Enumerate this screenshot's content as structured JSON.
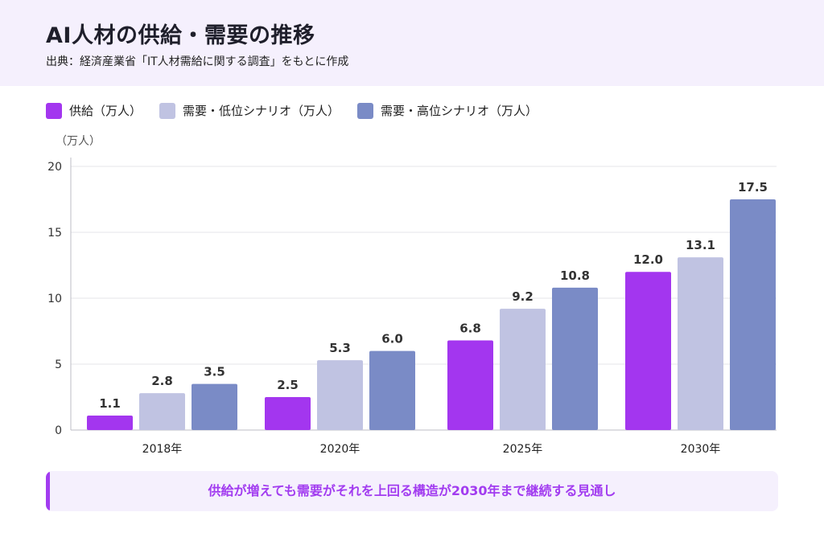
{
  "header": {
    "title": "AI人材の供給・需要の推移",
    "subtitle": "出典：経済産業省「IT人材需給に関する調査」をもとに作成"
  },
  "legend": [
    {
      "label": "供給（万人）",
      "color": "#a336ef"
    },
    {
      "label": "需要・低位シナリオ（万人）",
      "color": "#c0c3e2"
    },
    {
      "label": "需要・高位シナリオ（万人）",
      "color": "#7a8bc6"
    }
  ],
  "chart_data": {
    "type": "bar",
    "unit_label": "（万人）",
    "categories": [
      "2018年",
      "2020年",
      "2025年",
      "2030年"
    ],
    "series": [
      {
        "name": "供給（万人）",
        "color": "#a336ef",
        "values": [
          1.1,
          2.5,
          6.8,
          12.0
        ],
        "labels": [
          "1.1",
          "2.5",
          "6.8",
          "12.0"
        ]
      },
      {
        "name": "需要・低位シナリオ（万人）",
        "color": "#c0c3e2",
        "values": [
          2.8,
          5.3,
          9.2,
          13.1
        ],
        "labels": [
          "2.8",
          "5.3",
          "9.2",
          "13.1"
        ]
      },
      {
        "name": "需要・高位シナリオ（万人）",
        "color": "#7a8bc6",
        "values": [
          3.5,
          6.0,
          10.8,
          17.5
        ],
        "labels": [
          "3.5",
          "6.0",
          "10.8",
          "17.5"
        ]
      }
    ],
    "yticks": [
      "0",
      "5",
      "10",
      "15",
      "20"
    ],
    "ylim": [
      0,
      20
    ],
    "grid": true,
    "legend_position": "top-left"
  },
  "callout": {
    "text": "供給が増えても需要がそれを上回る構造が2030年まで継続する見通し",
    "accent": "#a23cf0"
  }
}
